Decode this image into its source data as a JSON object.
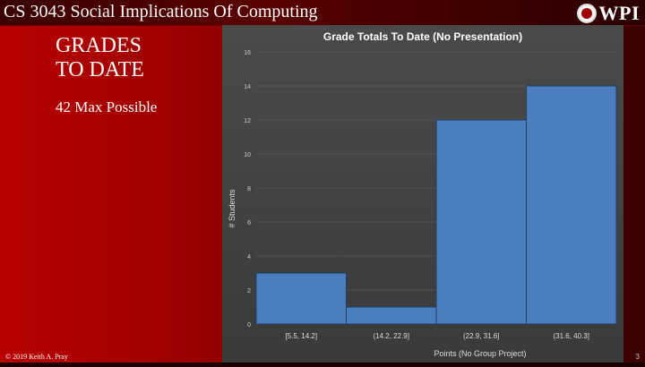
{
  "header": {
    "course_title": "CS 3043 Social Implications Of Computing",
    "logo_text": "WPI"
  },
  "slide": {
    "title_line1": "GRADES",
    "title_line2": "TO DATE",
    "subtitle": "42 Max Possible"
  },
  "footer": {
    "copyright": "© 2019 Keith A. Pray",
    "page_number": "3"
  },
  "chart_data": {
    "type": "bar",
    "title": "Grade Totals To Date (No Presentation)",
    "xlabel": "Points (No Group Project)",
    "ylabel": "# Students",
    "categories": [
      "[5.5, 14.2]",
      "(14.2, 22.9]",
      "(22.9, 31.6]",
      "(31.6, 40.3]"
    ],
    "values": [
      3,
      1,
      12,
      14
    ],
    "ylim": [
      0,
      16
    ],
    "yticks": [
      0,
      2,
      4,
      6,
      8,
      10,
      12,
      14,
      16
    ],
    "grid": true,
    "bar_color": "#4a7ebf"
  }
}
